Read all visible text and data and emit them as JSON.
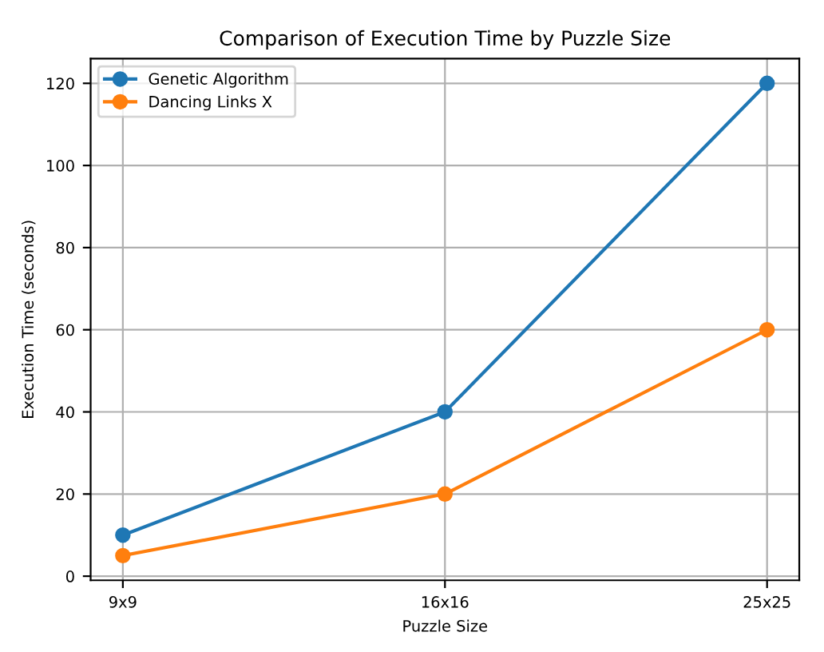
{
  "chart_data": {
    "type": "line",
    "title": "Comparison of Execution Time by Puzzle Size",
    "xlabel": "Puzzle Size",
    "ylabel": "Execution Time (seconds)",
    "categories": [
      "9x9",
      "16x16",
      "25x25"
    ],
    "series": [
      {
        "name": "Genetic Algorithm",
        "color": "#1f77b4",
        "values": [
          10,
          40,
          120
        ]
      },
      {
        "name": "Dancing Links X",
        "color": "#ff7f0e",
        "values": [
          5,
          20,
          60
        ]
      }
    ],
    "ylim": [
      -1,
      126
    ],
    "yticks": [
      0,
      20,
      40,
      60,
      80,
      100,
      120
    ],
    "grid": true,
    "legend": "top left",
    "marker": "circle",
    "line_style": "solid"
  }
}
